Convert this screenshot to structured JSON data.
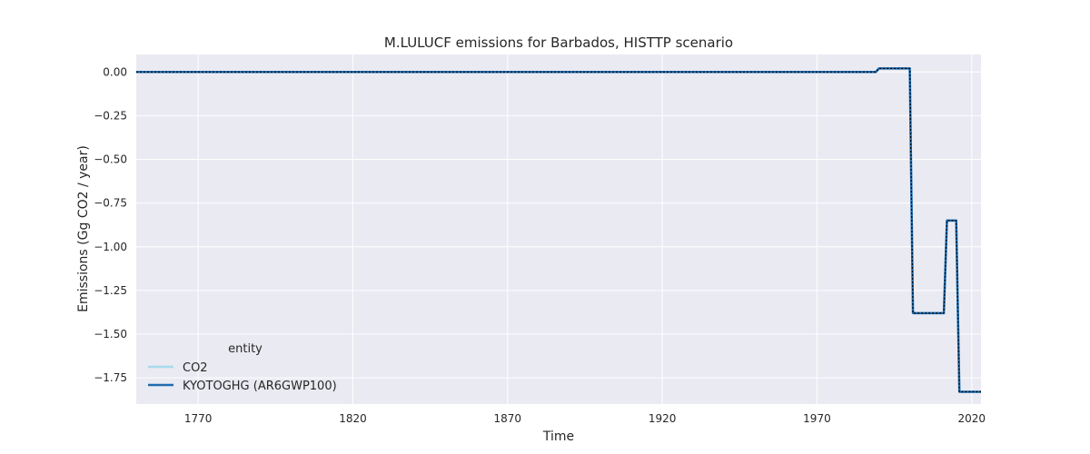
{
  "chart_data": {
    "type": "line",
    "title": "M.LULUCF emissions for Barbados, HISTTP scenario",
    "xlabel": "Time",
    "ylabel": "Emissions (Gg CO2 / year)",
    "xlim": [
      1750,
      2023
    ],
    "ylim": [
      -1.9,
      0.1
    ],
    "xticks": [
      1770,
      1820,
      1870,
      1920,
      1970,
      2020
    ],
    "xtick_labels": [
      "1770",
      "1820",
      "1870",
      "1920",
      "1970",
      "2020"
    ],
    "yticks": [
      0.0,
      -0.25,
      -0.5,
      -0.75,
      -1.0,
      -1.25,
      -1.5,
      -1.75
    ],
    "ytick_labels": [
      "0.00",
      "−0.25",
      "−0.50",
      "−0.75",
      "−1.00",
      "−1.25",
      "−1.50",
      "−1.75"
    ],
    "grid": true,
    "background": "#eaeaf2",
    "legend": {
      "title": "entity",
      "placement": "lower-left",
      "entries": [
        "CO2",
        "KYOTOGHG (AR6GWP100)"
      ]
    },
    "series": [
      {
        "name": "CO2",
        "color": "#a6dbeb",
        "style": "solid",
        "x": [
          1750,
          1989,
          1990,
          2000,
          2001,
          2011,
          2012,
          2015,
          2016,
          2023
        ],
        "y": [
          0.0,
          0.0,
          0.02,
          0.02,
          -1.38,
          -1.38,
          -0.85,
          -0.85,
          -1.83,
          -1.83
        ]
      },
      {
        "name": "KYOTOGHG (AR6GWP100)",
        "color": "#1f6cb0",
        "style": "solid",
        "x": [
          1750,
          1989,
          1990,
          2000,
          2001,
          2011,
          2012,
          2015,
          2016,
          2023
        ],
        "y": [
          0.0,
          0.0,
          0.02,
          0.02,
          -1.38,
          -1.38,
          -0.85,
          -0.85,
          -1.83,
          -1.83
        ]
      },
      {
        "name": "",
        "color": "#000000",
        "style": "dotted",
        "x": [
          1750,
          1989,
          1990,
          2000,
          2001,
          2011,
          2012,
          2015,
          2016,
          2023
        ],
        "y": [
          0.0,
          0.0,
          0.02,
          0.02,
          -1.38,
          -1.38,
          -0.85,
          -0.85,
          -1.83,
          -1.83
        ]
      }
    ]
  }
}
